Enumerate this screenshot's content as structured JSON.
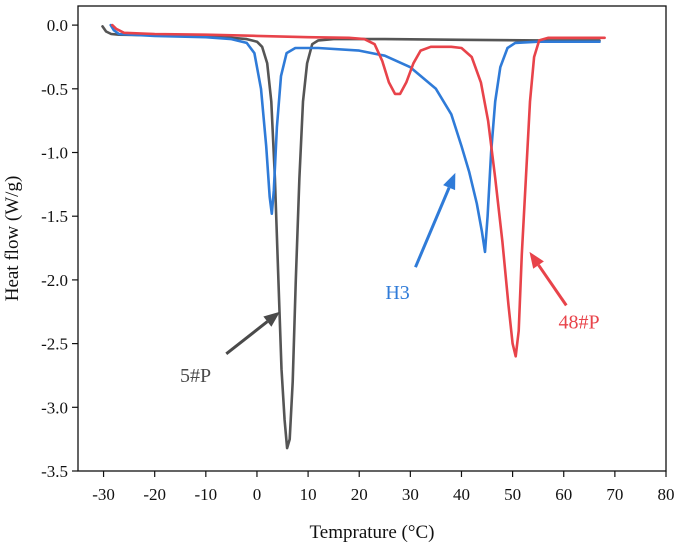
{
  "chart_data": {
    "type": "line",
    "xlabel": "Temprature (°C)",
    "ylabel": "Heat flow (W/g)",
    "xlim": [
      -35,
      80
    ],
    "ylim": [
      -3.5,
      0.15
    ],
    "xticks": [
      -30,
      -20,
      -10,
      0,
      10,
      20,
      30,
      40,
      50,
      60,
      70,
      80
    ],
    "xtick_labels": [
      "-30",
      "-20",
      "-10",
      "0",
      "10",
      "20",
      "30",
      "40",
      "50",
      "60",
      "70",
      "80"
    ],
    "yticks": [
      0.0,
      -0.5,
      -1.0,
      -1.5,
      -2.0,
      -2.5,
      -3.0,
      -3.5
    ],
    "ytick_labels": [
      "0.0",
      "-0.5",
      "-1.0",
      "-1.5",
      "-2.0",
      "-2.5",
      "-3.0",
      "-3.5"
    ],
    "series": [
      {
        "name": "5#P",
        "color": "#555555",
        "points": [
          [
            -30.2,
            -0.01
          ],
          [
            -29.5,
            -0.05
          ],
          [
            -28.5,
            -0.07
          ],
          [
            -27,
            -0.075
          ],
          [
            -20,
            -0.08
          ],
          [
            -10,
            -0.09
          ],
          [
            -5,
            -0.1
          ],
          [
            -2,
            -0.11
          ],
          [
            0,
            -0.13
          ],
          [
            1,
            -0.17
          ],
          [
            2,
            -0.3
          ],
          [
            2.8,
            -0.6
          ],
          [
            3.5,
            -1.2
          ],
          [
            4.2,
            -2.0
          ],
          [
            4.8,
            -2.7
          ],
          [
            5.4,
            -3.1
          ],
          [
            5.9,
            -3.32
          ],
          [
            6.4,
            -3.25
          ],
          [
            7,
            -2.8
          ],
          [
            7.6,
            -2.0
          ],
          [
            8.3,
            -1.2
          ],
          [
            9,
            -0.6
          ],
          [
            9.8,
            -0.3
          ],
          [
            10.8,
            -0.15
          ],
          [
            12,
            -0.12
          ],
          [
            15,
            -0.11
          ],
          [
            25,
            -0.11
          ],
          [
            40,
            -0.115
          ],
          [
            55,
            -0.12
          ],
          [
            67,
            -0.12
          ]
        ]
      },
      {
        "name": "H3",
        "color": "#2f7bd8",
        "points": [
          [
            -28.6,
            0.0
          ],
          [
            -28,
            -0.04
          ],
          [
            -27,
            -0.07
          ],
          [
            -20,
            -0.085
          ],
          [
            -10,
            -0.095
          ],
          [
            -5,
            -0.11
          ],
          [
            -2,
            -0.14
          ],
          [
            -0.5,
            -0.22
          ],
          [
            0.8,
            -0.5
          ],
          [
            1.8,
            -0.95
          ],
          [
            2.5,
            -1.35
          ],
          [
            2.9,
            -1.48
          ],
          [
            3.3,
            -1.3
          ],
          [
            3.9,
            -0.8
          ],
          [
            4.7,
            -0.4
          ],
          [
            5.8,
            -0.22
          ],
          [
            7.5,
            -0.18
          ],
          [
            12,
            -0.18
          ],
          [
            20,
            -0.2
          ],
          [
            25,
            -0.24
          ],
          [
            30,
            -0.33
          ],
          [
            35,
            -0.5
          ],
          [
            38,
            -0.7
          ],
          [
            40,
            -0.95
          ],
          [
            41.5,
            -1.15
          ],
          [
            43,
            -1.4
          ],
          [
            44,
            -1.62
          ],
          [
            44.6,
            -1.78
          ],
          [
            45.1,
            -1.5
          ],
          [
            45.8,
            -1.0
          ],
          [
            46.6,
            -0.6
          ],
          [
            47.6,
            -0.33
          ],
          [
            49,
            -0.18
          ],
          [
            50.5,
            -0.14
          ],
          [
            55,
            -0.13
          ],
          [
            67,
            -0.13
          ]
        ]
      },
      {
        "name": "48#P",
        "color": "#e8434a",
        "points": [
          [
            -28.3,
            0.0
          ],
          [
            -27.5,
            -0.03
          ],
          [
            -26,
            -0.06
          ],
          [
            -20,
            -0.07
          ],
          [
            -10,
            -0.075
          ],
          [
            0,
            -0.085
          ],
          [
            10,
            -0.095
          ],
          [
            18,
            -0.1
          ],
          [
            21,
            -0.11
          ],
          [
            23,
            -0.15
          ],
          [
            24.5,
            -0.28
          ],
          [
            25.8,
            -0.45
          ],
          [
            27,
            -0.54
          ],
          [
            28,
            -0.54
          ],
          [
            29.2,
            -0.45
          ],
          [
            30.6,
            -0.3
          ],
          [
            32,
            -0.2
          ],
          [
            34,
            -0.17
          ],
          [
            38,
            -0.17
          ],
          [
            40,
            -0.18
          ],
          [
            42,
            -0.25
          ],
          [
            43.8,
            -0.45
          ],
          [
            45.2,
            -0.75
          ],
          [
            46.6,
            -1.2
          ],
          [
            48,
            -1.7
          ],
          [
            49.2,
            -2.2
          ],
          [
            50,
            -2.5
          ],
          [
            50.6,
            -2.6
          ],
          [
            51.2,
            -2.4
          ],
          [
            51.8,
            -1.8
          ],
          [
            52.6,
            -1.2
          ],
          [
            53.4,
            -0.6
          ],
          [
            54.2,
            -0.25
          ],
          [
            55.2,
            -0.12
          ],
          [
            57,
            -0.1
          ],
          [
            63,
            -0.1
          ],
          [
            68,
            -0.1
          ]
        ]
      }
    ],
    "annotations": [
      {
        "text": "5#P",
        "color": "#4a4a4a",
        "label_at": [
          -12,
          -2.8
        ],
        "arrow_from": [
          -6,
          -2.58
        ],
        "arrow_to": [
          4.5,
          -2.25
        ]
      },
      {
        "text": "H3",
        "color": "#2f7bd8",
        "label_at": [
          27.5,
          -2.15
        ],
        "arrow_from": [
          31,
          -1.9
        ],
        "arrow_to": [
          38.8,
          -1.16
        ]
      },
      {
        "text": "48#P",
        "color": "#e8434a",
        "label_at": [
          63,
          -2.38
        ],
        "arrow_from": [
          60.5,
          -2.2
        ],
        "arrow_to": [
          53.3,
          -1.78
        ]
      }
    ]
  }
}
